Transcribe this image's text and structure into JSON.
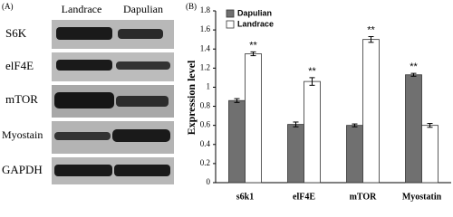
{
  "panel_a": {
    "label": "(A)",
    "columns": [
      "Landrace",
      "Dapulian"
    ],
    "rows": [
      "S6K",
      "elF4E",
      "mTOR",
      "Myostain",
      "GAPDH"
    ]
  },
  "chart_data": {
    "type": "bar",
    "label": "(B)",
    "y_label": "Expression level",
    "categories": [
      "s6k1",
      "elF4E",
      "mTOR",
      "Myostatin"
    ],
    "series": [
      {
        "name": "Dapulian",
        "color": "#707070",
        "values": [
          0.86,
          0.61,
          0.6,
          1.13
        ],
        "errors": [
          0.02,
          0.025,
          0.015,
          0.015
        ],
        "significance": [
          null,
          null,
          null,
          "**"
        ]
      },
      {
        "name": "Landrace",
        "color": "#ffffff",
        "values": [
          1.35,
          1.06,
          1.5,
          0.6
        ],
        "errors": [
          0.02,
          0.04,
          0.03,
          0.02
        ],
        "significance": [
          "**",
          "**",
          "**",
          null
        ]
      }
    ],
    "ylim": [
      0,
      1.8
    ],
    "yticks": [
      0,
      0.2,
      0.4,
      0.6,
      0.8,
      1,
      1.2,
      1.4,
      1.6,
      1.8
    ],
    "legend": "top-left"
  }
}
